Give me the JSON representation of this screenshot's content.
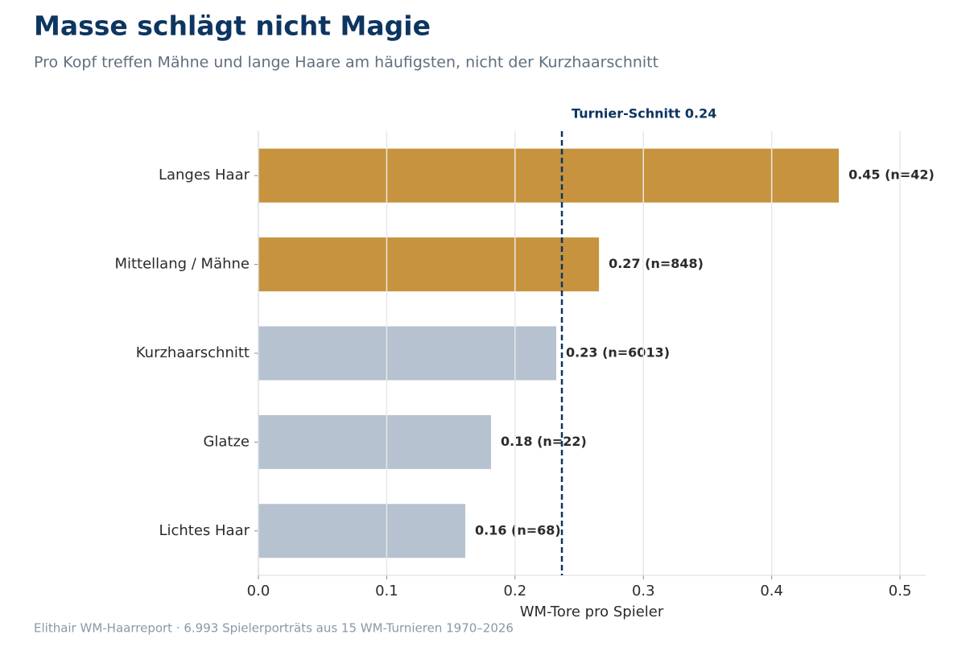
{
  "chart_data": {
    "type": "barh",
    "title": "Masse schlägt nicht Magie",
    "subtitle": "Pro Kopf treffen Mähne und lange Haare am häufigsten, nicht der Kurzhaarschnitt",
    "x_label": "WM-Tore pro Spieler",
    "footer": "Elithair WM-Haarreport  ·  6.993 Spielerporträts aus 15 WM-Turnieren 1970–2026",
    "categories": [
      "Langes Haar",
      "Mittellang / Mähne",
      "Kurzhaarschnitt",
      "Glatze",
      "Lichtes Haar"
    ],
    "values": [
      0.4523,
      0.2654,
      0.2321,
      0.1813,
      0.1612
    ],
    "value_labels": [
      "0.45  (n=42)",
      "0.27  (n=848)",
      "0.23  (n=6013)",
      "0.18  (n=22)",
      "0.16  (n=68)"
    ],
    "colors": [
      "#c8933e",
      "#c8933e",
      "#b6c2cf",
      "#b6c2cf",
      "#b6c2cf"
    ],
    "reference_line": {
      "value": 0.2365,
      "label": "Turnier-Schnitt 0.24",
      "color": "#0d3561"
    },
    "xlim": [
      0,
      0.52
    ],
    "xticks": [
      {
        "value": 0,
        "label": "0.0"
      },
      0.1,
      0.2,
      0.3,
      0.4,
      0.5
    ],
    "grid": true
  }
}
